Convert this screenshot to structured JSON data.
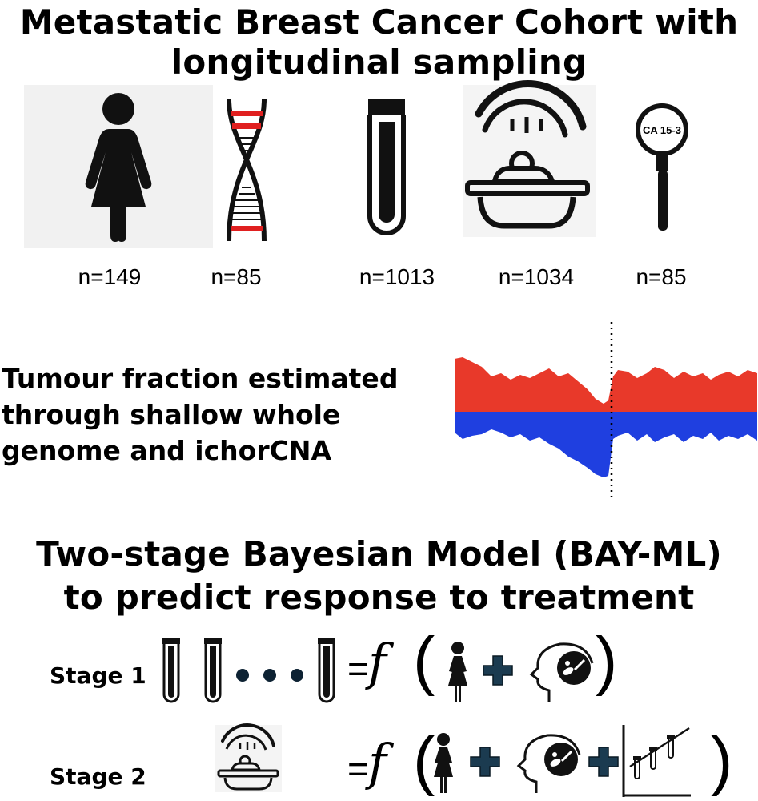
{
  "header": {
    "title_line1": "Metastatic Breast Cancer Cohort with",
    "title_line2": "longitudinal sampling"
  },
  "cohort": {
    "items": [
      {
        "icon": "woman-icon",
        "count": "n=149"
      },
      {
        "icon": "dna-icon",
        "count": "n=85"
      },
      {
        "icon": "blood-tube-icon",
        "count": "n=1013"
      },
      {
        "icon": "scanner-icon",
        "count": "n=1034"
      },
      {
        "icon": "magnifier-icon",
        "count": "n=85",
        "magnifier_text": "CA 15-3"
      }
    ]
  },
  "tumour_fraction": {
    "line1": "Tumour fraction estimated",
    "line2": "through shallow whole",
    "line3": "genome and ichorCNA",
    "colors": {
      "gain": "#e8392a",
      "loss": "#1f3fe0"
    }
  },
  "model": {
    "title_line1": "Two-stage Bayesian Model (BAY-ML)",
    "title_line2": "to predict response to treatment",
    "stage1": {
      "label": "Stage 1",
      "equals": "=",
      "function": "f",
      "open_paren": "(",
      "close_paren": ")"
    },
    "stage2": {
      "label": "Stage 2",
      "equals": "=",
      "function": "f",
      "open_paren": "(",
      "close_paren": ")"
    },
    "colors": {
      "plus": "#1b3b50",
      "dot": "#0d2233"
    }
  }
}
